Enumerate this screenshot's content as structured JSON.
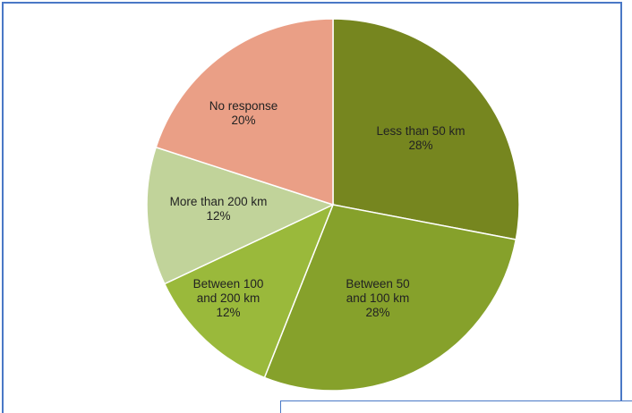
{
  "chart_data": {
    "type": "pie",
    "start_angle_deg": 0,
    "direction": "clockwise",
    "slices": [
      {
        "label_lines": [
          "Less than 50 km",
          "28%"
        ],
        "value": 28,
        "color": "#76861f"
      },
      {
        "label_lines": [
          "Between 50",
          "and 100 km",
          "28%"
        ],
        "value": 28,
        "color": "#86a12b"
      },
      {
        "label_lines": [
          "Between 100",
          "and 200 km",
          "12%"
        ],
        "value": 12,
        "color": "#9ab93b"
      },
      {
        "label_lines": [
          "More than 200 km",
          "12%"
        ],
        "value": 12,
        "color": "#c1d39a"
      },
      {
        "label_lines": [
          "No response",
          "20%"
        ],
        "value": 20,
        "color": "#ea9f86"
      }
    ],
    "legend": "none"
  }
}
